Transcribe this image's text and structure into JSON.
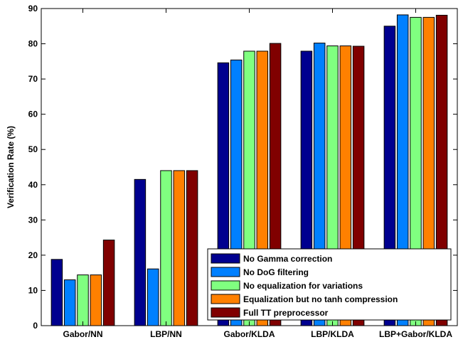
{
  "chart_data": {
    "type": "bar",
    "title": "",
    "xlabel": "",
    "ylabel": "Verification Rate (%)",
    "ylim": [
      0,
      90
    ],
    "yticks": [
      0,
      10,
      20,
      30,
      40,
      50,
      60,
      70,
      80,
      90
    ],
    "grid": false,
    "legend_position": "bottom-right",
    "categories": [
      "Gabor/NN",
      "LBP/NN",
      "Gabor/KLDA",
      "LBP/KLDA",
      "LBP+Gabor/KLDA"
    ],
    "series": [
      {
        "name": "No Gamma correction",
        "color": "#00008f",
        "values": [
          18.8,
          41.5,
          74.6,
          77.9,
          85.0
        ]
      },
      {
        "name": "No DoG filtering",
        "color": "#0080ff",
        "values": [
          13.0,
          16.1,
          75.4,
          80.2,
          88.2
        ]
      },
      {
        "name": "No equalization for variations",
        "color": "#80ff80",
        "values": [
          14.4,
          44.0,
          77.9,
          79.4,
          87.5
        ]
      },
      {
        "name": "Equalization but no tanh compression",
        "color": "#ff8000",
        "values": [
          14.4,
          44.0,
          77.9,
          79.4,
          87.5
        ]
      },
      {
        "name": "Full TT preprocessor",
        "color": "#800000",
        "values": [
          24.3,
          44.0,
          80.1,
          79.3,
          88.1
        ]
      }
    ]
  }
}
